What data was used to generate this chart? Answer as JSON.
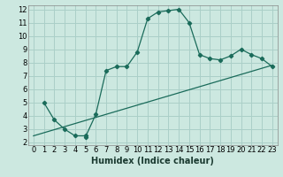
{
  "xlabel": "Humidex (Indice chaleur)",
  "background_color": "#cce8e0",
  "line_color": "#1a6b5a",
  "grid_color": "#aacfc8",
  "xlim": [
    -0.5,
    23.5
  ],
  "ylim": [
    1.8,
    12.3
  ],
  "xticks": [
    0,
    1,
    2,
    3,
    4,
    5,
    6,
    7,
    8,
    9,
    10,
    11,
    12,
    13,
    14,
    15,
    16,
    17,
    18,
    19,
    20,
    21,
    22,
    23
  ],
  "yticks": [
    2,
    3,
    4,
    5,
    6,
    7,
    8,
    9,
    10,
    11,
    12
  ],
  "curve1_x": [
    1,
    2,
    3,
    4,
    5,
    5,
    6,
    7,
    8,
    9,
    10,
    11,
    12,
    13,
    14,
    15,
    16,
    17,
    18,
    19,
    20,
    21,
    22,
    23
  ],
  "curve1_y": [
    5.0,
    3.7,
    3.0,
    2.5,
    2.5,
    2.4,
    4.1,
    7.4,
    7.7,
    7.7,
    8.8,
    11.3,
    11.8,
    11.9,
    12.0,
    11.0,
    8.6,
    8.3,
    8.2,
    8.5,
    9.0,
    8.6,
    8.3,
    7.7
  ],
  "curve2_x": [
    0,
    23
  ],
  "curve2_y": [
    2.5,
    7.8
  ],
  "fontsize_label": 7,
  "fontsize_tick": 6
}
